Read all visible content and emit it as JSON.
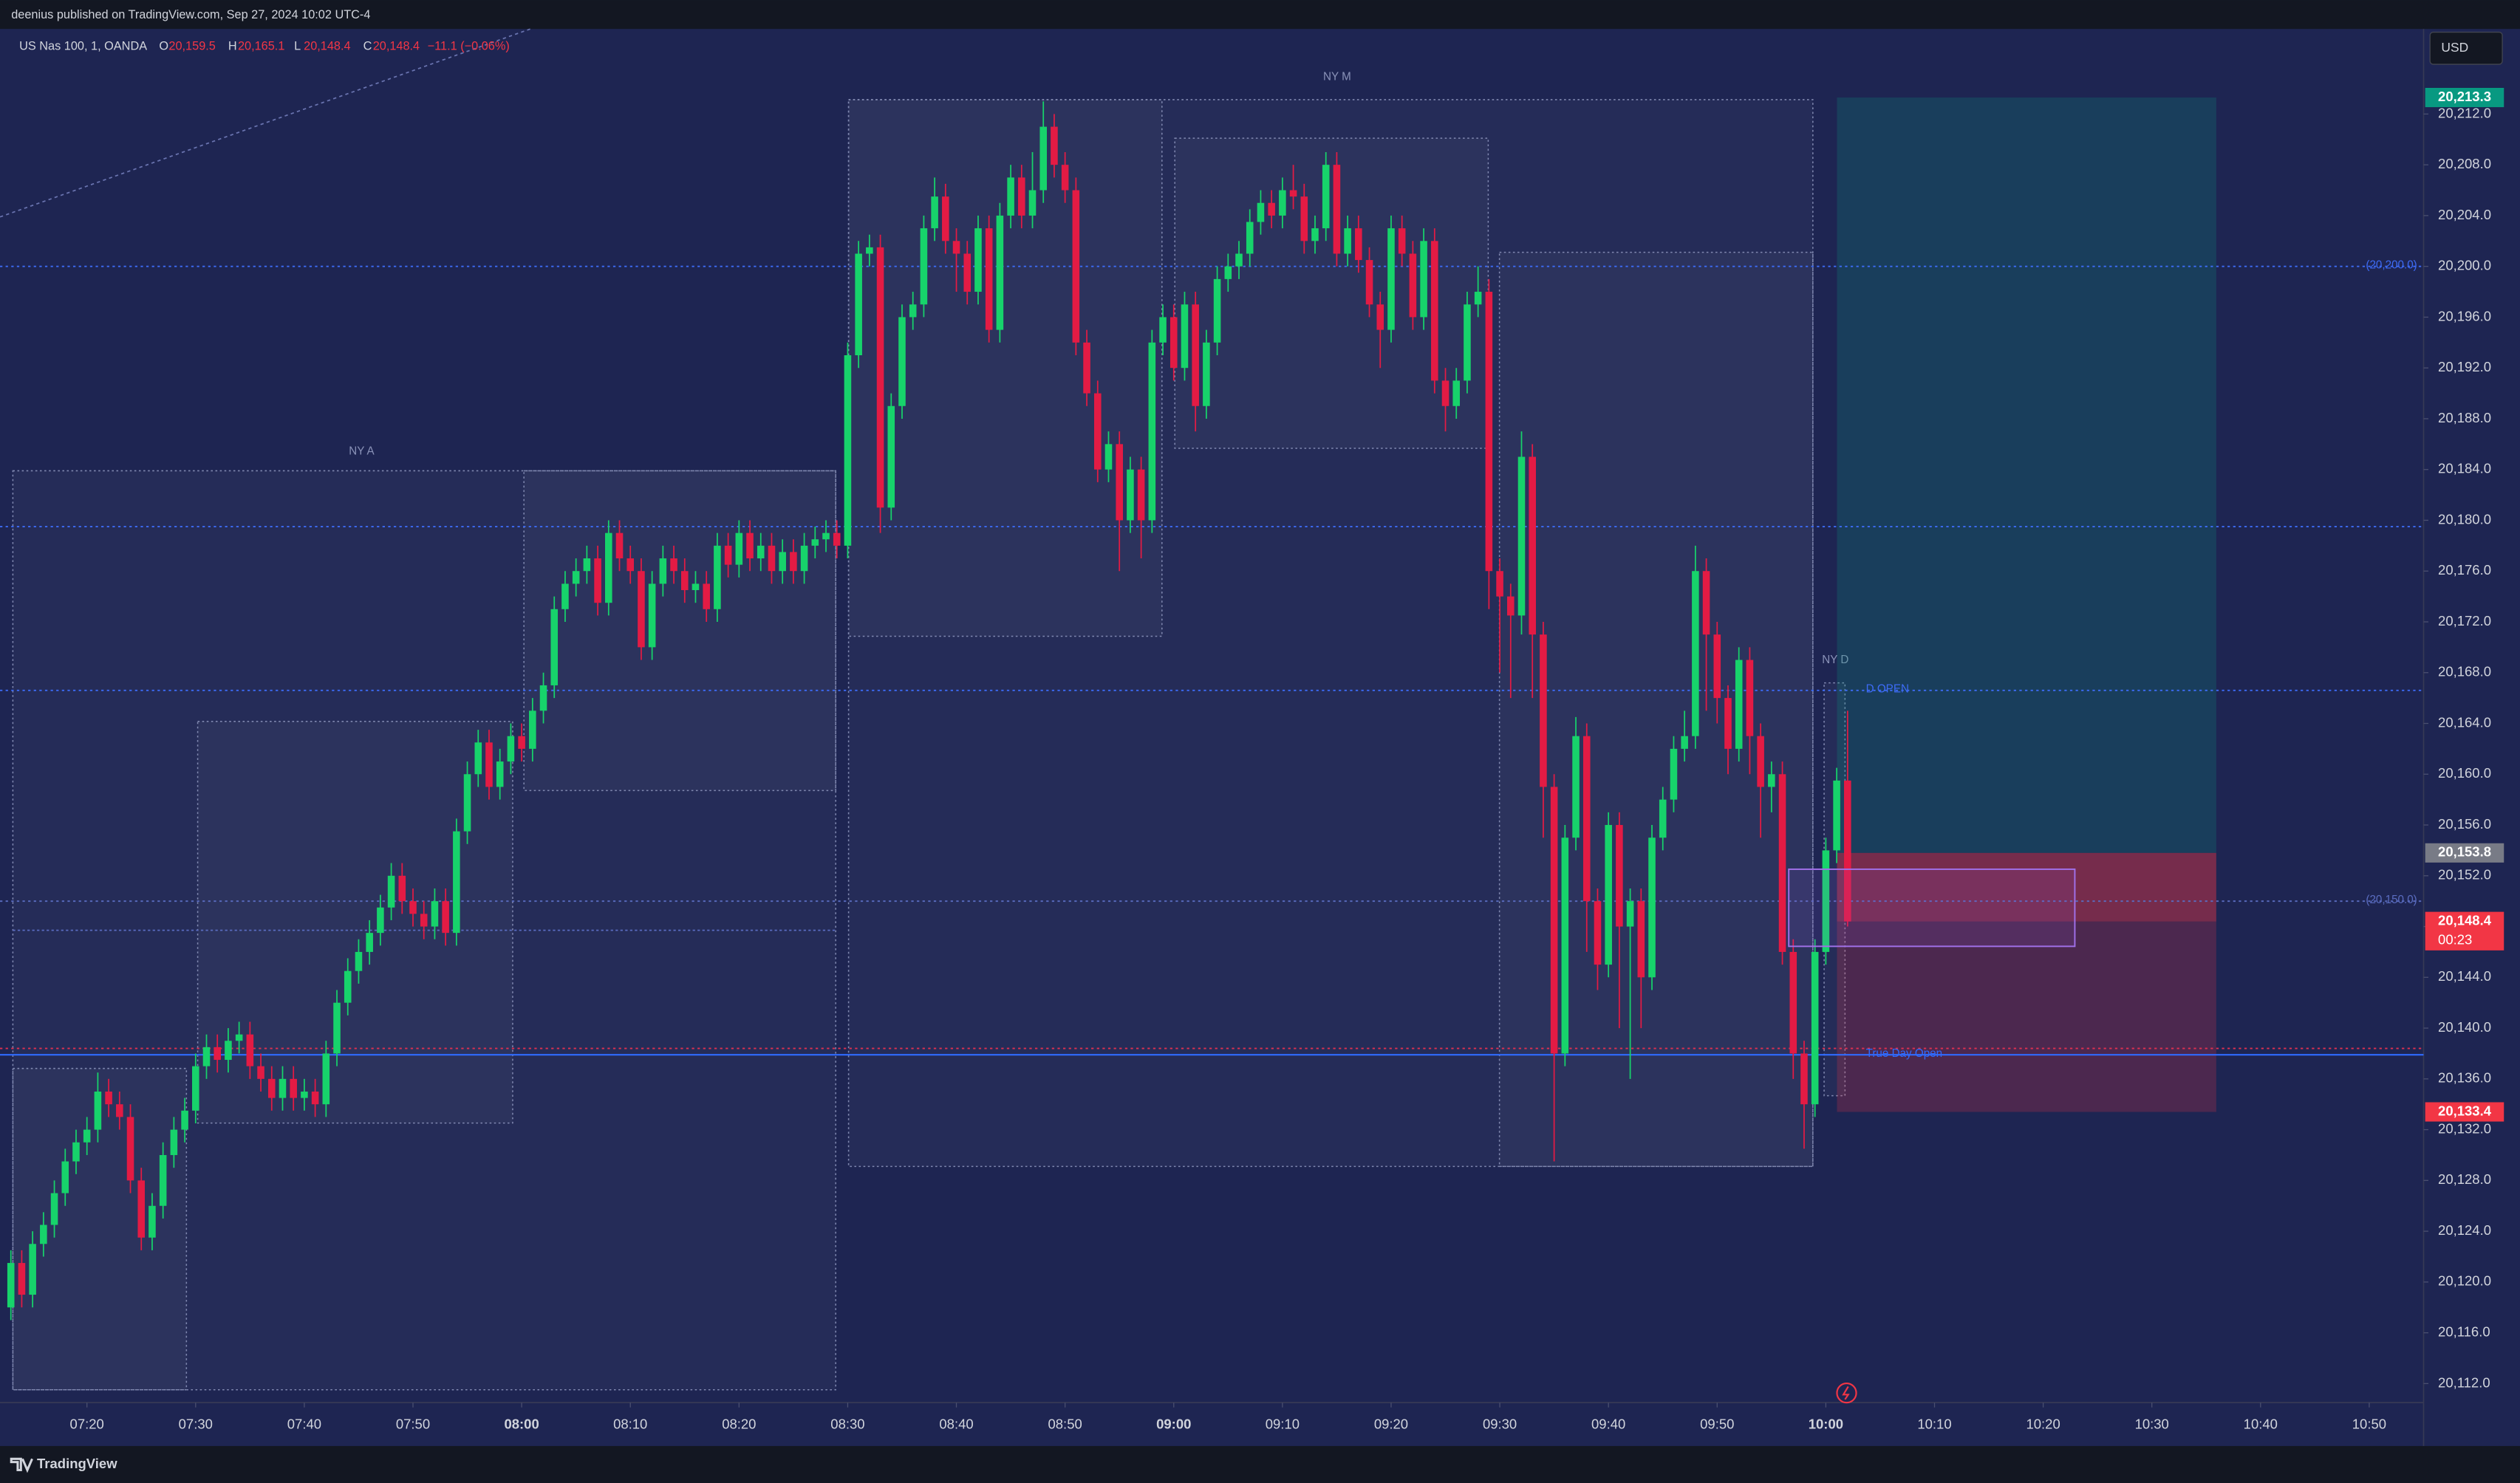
{
  "header": {
    "publisher": "deenius published on TradingView.com, Sep 27, 2024 10:02 UTC-4"
  },
  "legend": {
    "symbol": "US Nas 100, 1, OANDA",
    "o": "O",
    "o_value": "20,159.5",
    "h": "H",
    "h_value": "20,165.1",
    "l": "L",
    "l_value": "20,148.4",
    "c": "C",
    "c_value": "20,148.4",
    "change": "−11.1 (−0.06%)"
  },
  "currency": "USD",
  "sessions": [
    "NY A",
    "NY M",
    "NY D"
  ],
  "footer": {
    "brand": "TradingView"
  },
  "chart_data": {
    "type": "candlestick",
    "up_color": "#17d36b",
    "down_color": "#e31b44",
    "x": [
      "07:13",
      "07:14",
      "07:15",
      "07:16",
      "07:17",
      "07:18",
      "07:19",
      "07:20",
      "07:21",
      "07:22",
      "07:23",
      "07:24",
      "07:25",
      "07:26",
      "07:27",
      "07:28",
      "07:29",
      "07:30",
      "07:31",
      "07:32",
      "07:33",
      "07:34",
      "07:35",
      "07:36",
      "07:37",
      "07:38",
      "07:39",
      "07:40",
      "07:41",
      "07:42",
      "07:43",
      "07:44",
      "07:45",
      "07:46",
      "07:47",
      "07:48",
      "07:49",
      "07:50",
      "07:51",
      "07:52",
      "07:53",
      "07:54",
      "07:55",
      "07:56",
      "07:57",
      "07:58",
      "07:59",
      "08:00",
      "08:01",
      "08:02",
      "08:03",
      "08:04",
      "08:05",
      "08:06",
      "08:07",
      "08:08",
      "08:09",
      "08:10",
      "08:11",
      "08:12",
      "08:13",
      "08:14",
      "08:15",
      "08:16",
      "08:17",
      "08:18",
      "08:19",
      "08:20",
      "08:21",
      "08:22",
      "08:23",
      "08:24",
      "08:25",
      "08:26",
      "08:27",
      "08:28",
      "08:29",
      "08:30",
      "08:31",
      "08:32",
      "08:33",
      "08:34",
      "08:35",
      "08:36",
      "08:37",
      "08:38",
      "08:39",
      "08:40",
      "08:41",
      "08:42",
      "08:43",
      "08:44",
      "08:45",
      "08:46",
      "08:47",
      "08:48",
      "08:49",
      "08:50",
      "08:51",
      "08:52",
      "08:53",
      "08:54",
      "08:55",
      "08:56",
      "08:57",
      "08:58",
      "08:59",
      "09:00",
      "09:01",
      "09:02",
      "09:03",
      "09:04",
      "09:05",
      "09:06",
      "09:07",
      "09:08",
      "09:09",
      "09:10",
      "09:11",
      "09:12",
      "09:13",
      "09:14",
      "09:15",
      "09:16",
      "09:17",
      "09:18",
      "09:19",
      "09:20",
      "09:21",
      "09:22",
      "09:23",
      "09:24",
      "09:25",
      "09:26",
      "09:27",
      "09:28",
      "09:29",
      "09:30",
      "09:31",
      "09:32",
      "09:33",
      "09:34",
      "09:35",
      "09:36",
      "09:37",
      "09:38",
      "09:39",
      "09:40",
      "09:41",
      "09:42",
      "09:43",
      "09:44",
      "09:45",
      "09:46",
      "09:47",
      "09:48",
      "09:49",
      "09:50",
      "09:51",
      "09:52",
      "09:53",
      "09:54",
      "09:55",
      "09:56",
      "09:57",
      "09:58",
      "09:59",
      "10:00",
      "10:01",
      "10:02"
    ],
    "open": [
      20118,
      20121.5,
      20119,
      20123,
      20124.5,
      20127,
      20129.5,
      20131,
      20132,
      20135,
      20134,
      20133,
      20128,
      20123.5,
      20126,
      20130,
      20132,
      20133.5,
      20137,
      20138.5,
      20137.5,
      20139,
      20139.5,
      20137,
      20136,
      20134.5,
      20136,
      20134.5,
      20135,
      20134,
      20138,
      20142,
      20144.5,
      20146,
      20147.5,
      20149.5,
      20152,
      20150,
      20149,
      20148,
      20150,
      20147.5,
      20155.5,
      20160,
      20162.5,
      20159,
      20161,
      20163,
      20162,
      20165,
      20167,
      20173,
      20175,
      20176,
      20177,
      20173.5,
      20179,
      20177,
      20176,
      20170,
      20175,
      20177,
      20176,
      20174.5,
      20175,
      20173,
      20178,
      20176.5,
      20179,
      20177,
      20178,
      20176,
      20177.5,
      20176,
      20178,
      20178.5,
      20179,
      20178,
      20193,
      20201,
      20201.5,
      20181,
      20189,
      20196,
      20197,
      20203,
      20205.5,
      20202,
      20201,
      20198,
      20203,
      20195,
      20204,
      20207,
      20204,
      20206,
      20211,
      20208,
      20206,
      20194,
      20190,
      20184,
      20186,
      20180,
      20184,
      20180,
      20194,
      20196,
      20192,
      20197,
      20189,
      20194,
      20199,
      20200,
      20201,
      20203.5,
      20205,
      20204,
      20206,
      20205.5,
      20202,
      20203,
      20208,
      20201,
      20203,
      20200.5,
      20197,
      20195,
      20203,
      20201,
      20196,
      20202,
      20191,
      20189,
      20191,
      20197,
      20198,
      20176,
      20174,
      20172.5,
      20185,
      20171,
      20159,
      20138,
      20155,
      20163,
      20150,
      20145,
      20156,
      20148,
      20150,
      20144,
      20155,
      20158,
      20162,
      20163,
      20176,
      20171,
      20166,
      20162,
      20169,
      20163,
      20159,
      20160,
      20146,
      20138,
      20134,
      20146,
      20154,
      20159.5
    ],
    "high": [
      20122.5,
      20122.5,
      20124,
      20125.5,
      20128,
      20130.5,
      20132,
      20133,
      20136.5,
      20136,
      20135,
      20134,
      20129,
      20127,
      20131,
      20133,
      20134.5,
      20138,
      20139.5,
      20139.5,
      20140,
      20140.5,
      20140.5,
      20138,
      20137,
      20137,
      20137,
      20136,
      20136,
      20139,
      20143,
      20145.5,
      20147,
      20148.5,
      20150.5,
      20153,
      20153,
      20151,
      20150,
      20151,
      20151,
      20156.5,
      20161,
      20163.5,
      20163.5,
      20162,
      20164,
      20164,
      20166,
      20168,
      20174,
      20176,
      20177,
      20178,
      20178,
      20180,
      20180,
      20178,
      20177,
      20176,
      20178,
      20178,
      20177,
      20176,
      20176,
      20179,
      20179,
      20180,
      20180,
      20179,
      20179,
      20178.5,
      20178.5,
      20179,
      20179.5,
      20180,
      20180,
      20194,
      20202,
      20202.5,
      20202.5,
      20190,
      20197,
      20198,
      20204,
      20207,
      20206.5,
      20203,
      20202,
      20204,
      20204,
      20205,
      20208,
      20208,
      20209,
      20213,
      20212,
      20209,
      20207,
      20195,
      20191,
      20187,
      20187,
      20185,
      20185,
      20195,
      20197,
      20197,
      20198,
      20198,
      20195,
      20200,
      20201,
      20202,
      20204.5,
      20206,
      20206,
      20207,
      20208,
      20206.5,
      20204,
      20209,
      20209,
      20204,
      20204,
      20201.5,
      20198,
      20204,
      20204,
      20202,
      20203,
      20203,
      20192,
      20192,
      20198,
      20200,
      20199,
      20177,
      20175,
      20187,
      20186,
      20172,
      20160,
      20156,
      20164.5,
      20164,
      20151,
      20157,
      20157,
      20151,
      20151,
      20156,
      20159,
      20163,
      20165,
      20178,
      20177,
      20172,
      20167,
      20170,
      20170,
      20164,
      20161,
      20161,
      20147,
      20139,
      20147,
      20155,
      20160.5,
      20165
    ],
    "low": [
      20117,
      20118,
      20118,
      20122,
      20123.5,
      20126,
      20128.5,
      20130,
      20131,
      20133,
      20132,
      20127,
      20122.5,
      20122.5,
      20125,
      20129,
      20131,
      20132.5,
      20136,
      20136.5,
      20136.5,
      20138,
      20136,
      20135,
      20133.5,
      20133.5,
      20133.5,
      20133.5,
      20133,
      20133,
      20137,
      20141,
      20143.5,
      20145,
      20146.5,
      20148.5,
      20149,
      20148,
      20147,
      20147,
      20146.5,
      20146.5,
      20154.5,
      20159,
      20158,
      20158,
      20160,
      20161,
      20161,
      20164,
      20166,
      20172,
      20174,
      20175,
      20172.5,
      20172.5,
      20176,
      20175,
      20169,
      20169,
      20174,
      20175,
      20173.5,
      20173.5,
      20172,
      20172,
      20175.5,
      20175.5,
      20176,
      20176,
      20175,
      20175,
      20175,
      20175,
      20177,
      20177.5,
      20177,
      20177,
      20192,
      20200,
      20179,
      20180,
      20188,
      20195,
      20196,
      20202,
      20201,
      20198,
      20197,
      20197,
      20194,
      20194,
      20203,
      20203,
      20203,
      20205,
      20207,
      20205,
      20193,
      20189,
      20183,
      20183,
      20176,
      20179,
      20177,
      20179,
      20193,
      20191,
      20191,
      20187,
      20188,
      20193,
      20198,
      20199,
      20200,
      20202.5,
      20203,
      20203,
      20204.5,
      20201,
      20201,
      20202,
      20200,
      20200,
      20199.5,
      20196,
      20192,
      20194,
      20200,
      20195,
      20195,
      20190,
      20187,
      20188,
      20190,
      20196,
      20173,
      20168,
      20166,
      20171,
      20166,
      20155,
      20129.5,
      20137,
      20154,
      20146,
      20143,
      20144,
      20140,
      20136,
      20140,
      20143,
      20154,
      20157,
      20161,
      20162,
      20165,
      20164,
      20160,
      20161,
      20160,
      20155,
      20157,
      20145,
      20136,
      20130.5,
      20133,
      20145,
      20153,
      20148
    ],
    "close": [
      20121.5,
      20119,
      20123,
      20124.5,
      20127,
      20129.5,
      20131,
      20132,
      20135,
      20134,
      20133,
      20128,
      20123.5,
      20126,
      20130,
      20132,
      20133.5,
      20137,
      20138.5,
      20137.5,
      20139,
      20139.5,
      20137,
      20136,
      20134.5,
      20136,
      20134.5,
      20135,
      20134,
      20138,
      20142,
      20144.5,
      20146,
      20147.5,
      20149.5,
      20152,
      20150,
      20149,
      20148,
      20150,
      20147.5,
      20155.5,
      20160,
      20162.5,
      20159,
      20161,
      20163,
      20162,
      20165,
      20167,
      20173,
      20175,
      20176,
      20177,
      20173.5,
      20179,
      20177,
      20176,
      20170,
      20175,
      20177,
      20176,
      20174.5,
      20175,
      20173,
      20178,
      20176.5,
      20179,
      20177,
      20178,
      20176,
      20177.5,
      20176,
      20178,
      20178.5,
      20179,
      20178,
      20193,
      20201,
      20201.5,
      20181,
      20189,
      20196,
      20197,
      20203,
      20205.5,
      20202,
      20201,
      20198,
      20203,
      20195,
      20204,
      20207,
      20204,
      20206,
      20211,
      20208,
      20206,
      20194,
      20190,
      20184,
      20186,
      20180,
      20184,
      20180,
      20194,
      20196,
      20192,
      20197,
      20189,
      20194,
      20199,
      20200,
      20201,
      20203.5,
      20205,
      20204,
      20206,
      20205.5,
      20202,
      20203,
      20208,
      20201,
      20203,
      20200.5,
      20197,
      20195,
      20203,
      20201,
      20196,
      20202,
      20191,
      20189,
      20191,
      20197,
      20198,
      20176,
      20174,
      20172.5,
      20185,
      20171,
      20159,
      20138,
      20155,
      20163,
      20150,
      20145,
      20156,
      20148,
      20150,
      20144,
      20155,
      20158,
      20162,
      20163,
      20176,
      20171,
      20166,
      20162,
      20169,
      20163,
      20159,
      20160,
      20146,
      20138,
      20134,
      20146,
      20154,
      20159.5,
      20148.4
    ],
    "xlim": [
      "07:12",
      "10:55"
    ],
    "xticks": [
      "07:20",
      "07:30",
      "07:40",
      "07:50",
      "08:00",
      "08:10",
      "08:20",
      "08:30",
      "08:40",
      "08:50",
      "09:00",
      "09:10",
      "09:20",
      "09:30",
      "09:40",
      "09:50",
      "10:00",
      "10:10",
      "10:20",
      "10:30",
      "10:40",
      "10:50"
    ],
    "ylim": [
      20110.5,
      20218.7
    ],
    "yticks": [
      {
        "value": 20112,
        "label": "20,112.0"
      },
      {
        "value": 20116,
        "label": "20,116.0"
      },
      {
        "value": 20120,
        "label": "20,120.0"
      },
      {
        "value": 20124,
        "label": "20,124.0"
      },
      {
        "value": 20128,
        "label": "20,128.0"
      },
      {
        "value": 20132,
        "label": "20,132.0"
      },
      {
        "value": 20136,
        "label": "20,136.0"
      },
      {
        "value": 20140,
        "label": "20,140.0"
      },
      {
        "value": 20144,
        "label": "20,144.0"
      },
      {
        "value": 20148,
        "label": "20,148.0"
      },
      {
        "value": 20152,
        "label": "20,152.0"
      },
      {
        "value": 20156,
        "label": "20,156.0"
      },
      {
        "value": 20160,
        "label": "20,160.0"
      },
      {
        "value": 20164,
        "label": "20,164.0"
      },
      {
        "value": 20168,
        "label": "20,168.0"
      },
      {
        "value": 20172,
        "label": "20,172.0"
      },
      {
        "value": 20176,
        "label": "20,176.0"
      },
      {
        "value": 20180,
        "label": "20,180.0"
      },
      {
        "value": 20184,
        "label": "20,184.0"
      },
      {
        "value": 20188,
        "label": "20,188.0"
      },
      {
        "value": 20192,
        "label": "20,192.0"
      },
      {
        "value": 20196,
        "label": "20,196.0"
      },
      {
        "value": 20200,
        "label": "20,200.0"
      },
      {
        "value": 20204,
        "label": "20,204.0"
      },
      {
        "value": 20208,
        "label": "20,208.0"
      },
      {
        "value": 20212,
        "label": "20,212.0"
      }
    ],
    "hlines": [
      {
        "value": 20200,
        "label": "(20,200.0)",
        "color": "#3d6bf5",
        "style": "dotted"
      },
      {
        "value": 20179.5,
        "color": "#3d6bf5",
        "style": "dotted"
      },
      {
        "value": 20166.6,
        "label": "D OPEN",
        "color": "#3d6bf5",
        "style": "dotted"
      },
      {
        "value": 20150,
        "label": "(20,150.0)",
        "color": "#5a6cc0",
        "style": "dotted"
      },
      {
        "value": 20138.4,
        "color": "#e03050",
        "style": "dotted"
      },
      {
        "value": 20137.9,
        "label": "True Day Open",
        "color": "#2f6bff",
        "style": "solid"
      }
    ],
    "price_labels": [
      {
        "value": 20213.3,
        "label": "20,213.3",
        "color": "#089981"
      },
      {
        "value": 20153.8,
        "label": "20,153.8",
        "color": "#787b86"
      },
      {
        "value": 20148.4,
        "label": "20,148.4",
        "countdown": "00:23",
        "color": "#f23645"
      },
      {
        "value": 20133.4,
        "label": "20,133.4",
        "color": "#f23645"
      }
    ]
  }
}
